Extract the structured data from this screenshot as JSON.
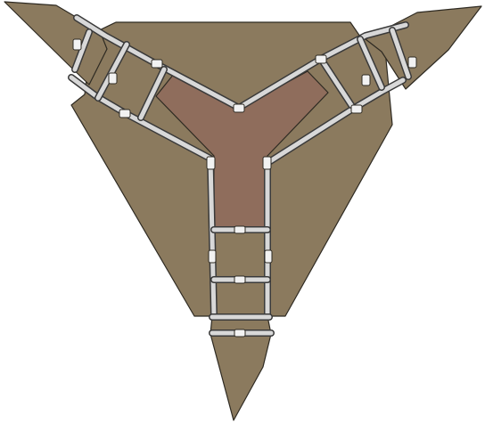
{
  "colors": {
    "background": "#ffffff",
    "floor": "#8b7a5e",
    "floor_dark": "#7f6e54",
    "courtyard": "#8f6d5c",
    "wall_light": "#d8d8d8",
    "wall_dark": "#3a3a3a",
    "outline": "#2e2a22",
    "post": "#f2f2f2"
  },
  "map": {
    "arms": [
      "north-west-arm",
      "north-east-arm",
      "south-arm"
    ],
    "center": "y-junction-courtyard"
  }
}
